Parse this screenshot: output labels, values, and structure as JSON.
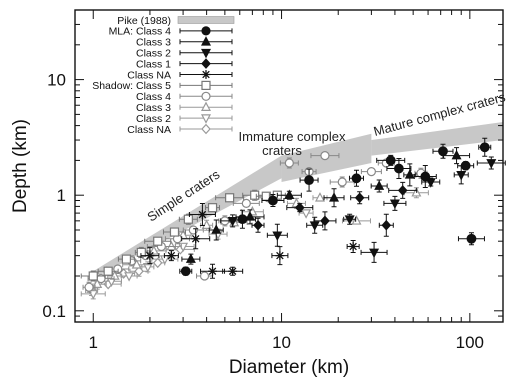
{
  "chart_data": {
    "type": "scatter",
    "xlabel": "Diameter (km)",
    "ylabel": "Depth (km)",
    "xscale": "log",
    "yscale": "log",
    "xlim": [
      0.8,
      150
    ],
    "ylim": [
      0.08,
      40
    ],
    "x_ticks": [
      {
        "v": 1,
        "label": "1"
      },
      {
        "v": 10,
        "label": "10"
      },
      {
        "v": 100,
        "label": "100"
      }
    ],
    "y_ticks": [
      {
        "v": 0.1,
        "label": "0.1"
      },
      {
        "v": 1,
        "label": "1"
      },
      {
        "v": 10,
        "label": "10"
      }
    ],
    "grid": false,
    "legend_position": "top-left",
    "annotations": [
      "Simple craters",
      "Immature complex craters",
      "Mature complex craters"
    ],
    "pike_band": {
      "name": "Pike (1988)",
      "color": "#c8c8c8",
      "segments": [
        {
          "x": [
            1,
            10
          ],
          "y_low": [
            0.19,
            1.4
          ],
          "y_high": [
            0.22,
            2.2
          ]
        },
        {
          "x": [
            10,
            30
          ],
          "y_low": [
            1.3,
            1.9
          ],
          "y_high": [
            2.2,
            3.4
          ]
        },
        {
          "x": [
            30,
            150
          ],
          "y_low": [
            2.2,
            3.0
          ],
          "y_high": [
            3.0,
            4.3
          ]
        }
      ]
    },
    "series": [
      {
        "name": "MLA: Class 4",
        "marker": "circle-filled",
        "color": "#111111",
        "points": [
          {
            "x": 3.1,
            "y": 0.22
          },
          {
            "x": 6.2,
            "y": 0.62
          },
          {
            "x": 9.0,
            "y": 0.9
          },
          {
            "x": 14,
            "y": 1.35
          },
          {
            "x": 25,
            "y": 1.4
          },
          {
            "x": 38,
            "y": 2.0
          },
          {
            "x": 42,
            "y": 1.7
          },
          {
            "x": 72,
            "y": 2.4
          },
          {
            "x": 95,
            "y": 1.8
          },
          {
            "x": 120,
            "y": 2.6
          },
          {
            "x": 102,
            "y": 0.42
          },
          {
            "x": 58,
            "y": 1.45
          }
        ]
      },
      {
        "name": "Class 3",
        "marker": "triangle-up-filled",
        "color": "#111111",
        "points": [
          {
            "x": 3.3,
            "y": 0.28
          },
          {
            "x": 4.5,
            "y": 0.5
          },
          {
            "x": 6.8,
            "y": 0.65
          },
          {
            "x": 11,
            "y": 1.0
          },
          {
            "x": 19,
            "y": 0.95
          },
          {
            "x": 33,
            "y": 1.2
          },
          {
            "x": 48,
            "y": 1.5
          },
          {
            "x": 85,
            "y": 2.2
          }
        ]
      },
      {
        "name": "Class 2",
        "marker": "triangle-down-filled",
        "color": "#111111",
        "points": [
          {
            "x": 5.5,
            "y": 0.6
          },
          {
            "x": 9.5,
            "y": 0.45
          },
          {
            "x": 15,
            "y": 0.55
          },
          {
            "x": 23,
            "y": 0.62
          },
          {
            "x": 31,
            "y": 0.32
          },
          {
            "x": 40,
            "y": 0.85
          },
          {
            "x": 62,
            "y": 1.3
          },
          {
            "x": 90,
            "y": 1.5
          },
          {
            "x": 130,
            "y": 1.9
          }
        ]
      },
      {
        "name": "Class 1",
        "marker": "diamond-filled",
        "color": "#111111",
        "points": [
          {
            "x": 7.5,
            "y": 0.55
          },
          {
            "x": 12.5,
            "y": 0.78
          },
          {
            "x": 17,
            "y": 0.6
          },
          {
            "x": 26,
            "y": 0.95
          },
          {
            "x": 36,
            "y": 0.55
          },
          {
            "x": 44,
            "y": 1.1
          }
        ]
      },
      {
        "name": "Class NA",
        "marker": "star",
        "color": "#111111",
        "points": [
          {
            "x": 2.0,
            "y": 0.3
          },
          {
            "x": 2.6,
            "y": 0.3
          },
          {
            "x": 3.5,
            "y": 0.42
          },
          {
            "x": 4.3,
            "y": 0.22
          },
          {
            "x": 5.5,
            "y": 0.22
          },
          {
            "x": 9.8,
            "y": 0.3
          },
          {
            "x": 24,
            "y": 0.36
          },
          {
            "x": 3.8,
            "y": 0.68
          }
        ]
      },
      {
        "name": "Shadow: Class 5",
        "marker": "square-open",
        "color": "#777777",
        "points": [
          {
            "x": 1.0,
            "y": 0.2
          },
          {
            "x": 1.2,
            "y": 0.22
          },
          {
            "x": 1.5,
            "y": 0.28
          },
          {
            "x": 1.8,
            "y": 0.32
          },
          {
            "x": 2.2,
            "y": 0.4
          },
          {
            "x": 2.7,
            "y": 0.48
          },
          {
            "x": 3.2,
            "y": 0.62
          },
          {
            "x": 4.3,
            "y": 0.78
          },
          {
            "x": 5.3,
            "y": 0.95
          },
          {
            "x": 7.2,
            "y": 1.0
          },
          {
            "x": 8.3,
            "y": 0.98
          },
          {
            "x": 9.5,
            "y": 1.0
          }
        ]
      },
      {
        "name": "Class 4",
        "marker": "circle-open",
        "color": "#888888",
        "points": [
          {
            "x": 0.95,
            "y": 0.16
          },
          {
            "x": 1.1,
            "y": 0.19
          },
          {
            "x": 1.35,
            "y": 0.23
          },
          {
            "x": 1.6,
            "y": 0.27
          },
          {
            "x": 1.9,
            "y": 0.3
          },
          {
            "x": 2.3,
            "y": 0.36
          },
          {
            "x": 2.8,
            "y": 0.42
          },
          {
            "x": 3.4,
            "y": 0.5
          },
          {
            "x": 3.9,
            "y": 0.2
          },
          {
            "x": 5.0,
            "y": 0.6
          },
          {
            "x": 6.5,
            "y": 0.85
          },
          {
            "x": 8.5,
            "y": 0.95
          },
          {
            "x": 11,
            "y": 1.9
          },
          {
            "x": 14,
            "y": 1.6
          },
          {
            "x": 17,
            "y": 2.2
          },
          {
            "x": 21,
            "y": 1.3
          },
          {
            "x": 30,
            "y": 1.6
          },
          {
            "x": 36,
            "y": 1.9
          },
          {
            "x": 55,
            "y": 1.55
          }
        ]
      },
      {
        "name": "Class 3",
        "marker": "triangle-up-open",
        "color": "#999999",
        "points": [
          {
            "x": 1.05,
            "y": 0.17
          },
          {
            "x": 1.3,
            "y": 0.2
          },
          {
            "x": 1.7,
            "y": 0.25
          },
          {
            "x": 2.1,
            "y": 0.33
          },
          {
            "x": 2.6,
            "y": 0.36
          },
          {
            "x": 3.0,
            "y": 0.45
          },
          {
            "x": 4.0,
            "y": 0.55
          },
          {
            "x": 5.6,
            "y": 0.58
          },
          {
            "x": 7.0,
            "y": 0.72
          },
          {
            "x": 12,
            "y": 0.85
          },
          {
            "x": 16,
            "y": 0.95
          },
          {
            "x": 25,
            "y": 0.6
          },
          {
            "x": 52,
            "y": 1.05
          }
        ]
      },
      {
        "name": "Class 2",
        "marker": "triangle-down-open",
        "color": "#999999",
        "points": [
          {
            "x": 1.0,
            "y": 0.14
          },
          {
            "x": 1.25,
            "y": 0.18
          },
          {
            "x": 1.55,
            "y": 0.2
          },
          {
            "x": 1.95,
            "y": 0.24
          },
          {
            "x": 2.4,
            "y": 0.28
          },
          {
            "x": 3.0,
            "y": 0.36
          },
          {
            "x": 4.6,
            "y": 0.46
          },
          {
            "x": 13.5,
            "y": 0.7
          }
        ]
      },
      {
        "name": "Class NA",
        "marker": "diamond-open",
        "color": "#999999",
        "points": [
          {
            "x": 0.98,
            "y": 0.15
          },
          {
            "x": 1.2,
            "y": 0.17
          },
          {
            "x": 1.45,
            "y": 0.21
          },
          {
            "x": 1.75,
            "y": 0.22
          },
          {
            "x": 2.2,
            "y": 0.26
          },
          {
            "x": 2.9,
            "y": 0.34
          }
        ]
      }
    ]
  }
}
